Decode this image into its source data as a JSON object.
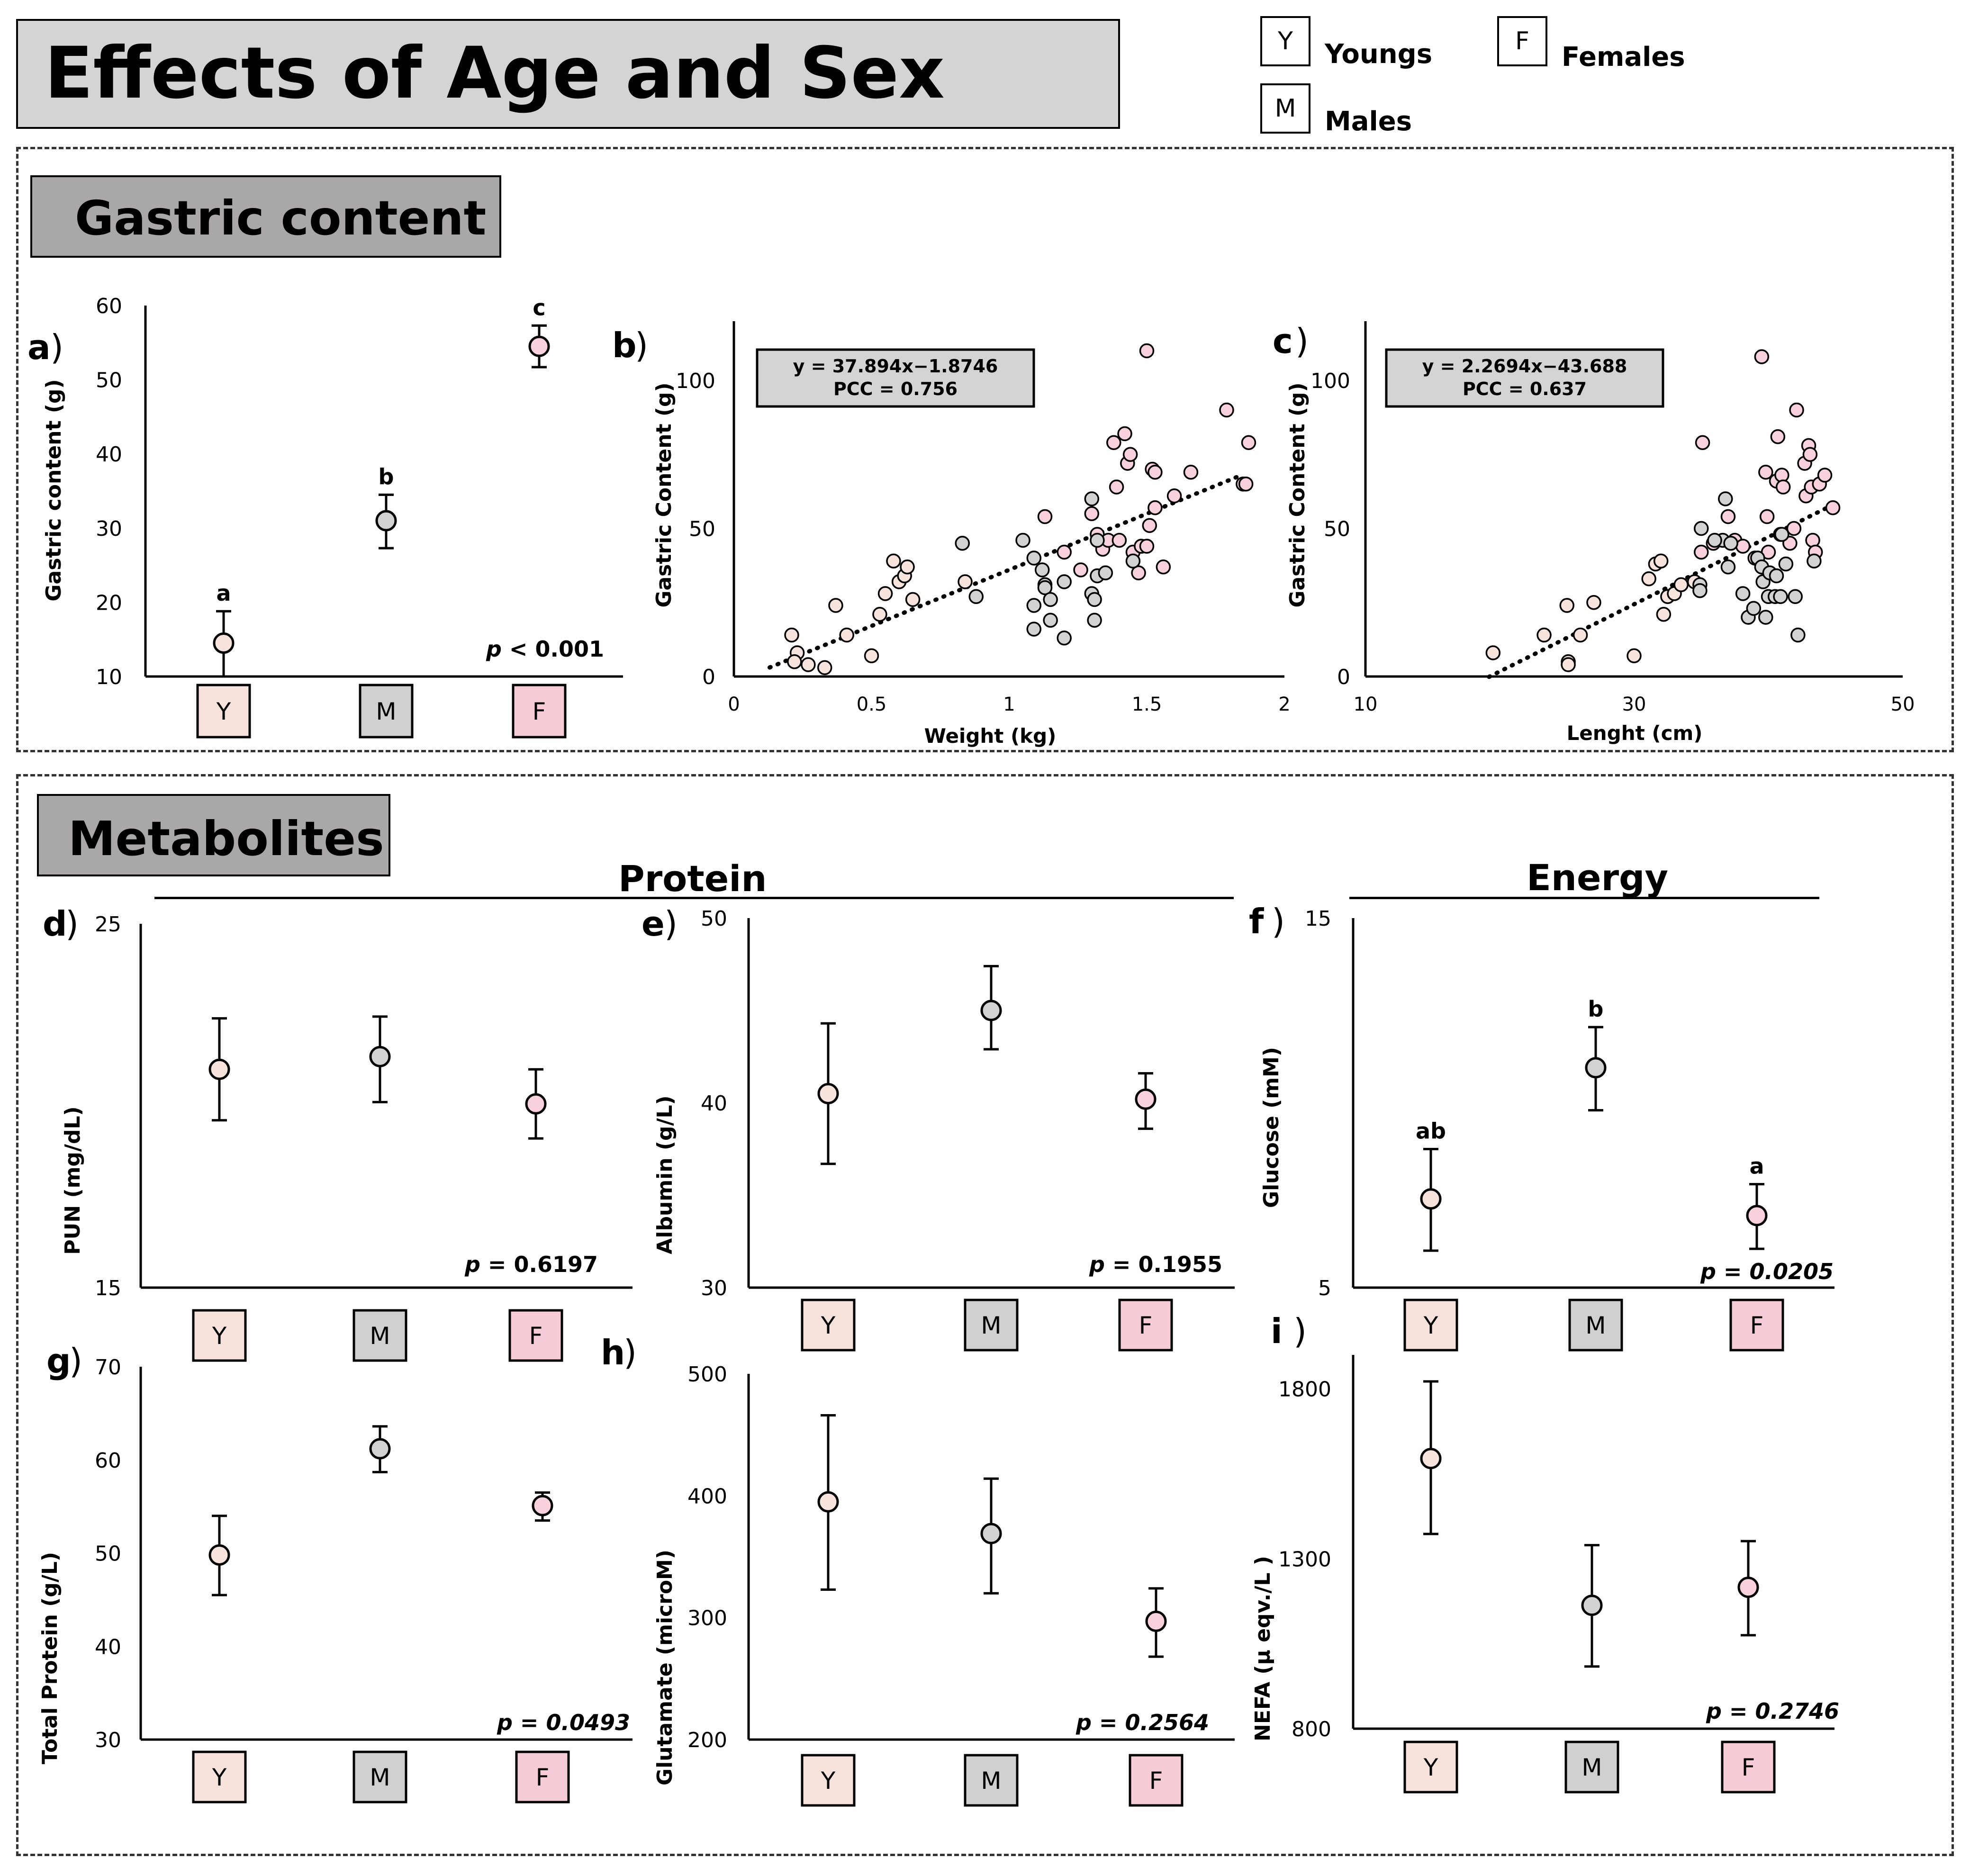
{
  "header": {
    "title": "Effects of Age and Sex",
    "legend": [
      {
        "code": "Y",
        "label": "Youngs",
        "color": "#f9e3dd"
      },
      {
        "code": "F",
        "label": "Females",
        "color": "#f9d1dc"
      },
      {
        "code": "M",
        "label": "Males",
        "color": "#d2d2d2"
      }
    ]
  },
  "sections": {
    "gastric": {
      "title": "Gastric content"
    },
    "metabolites": {
      "title": "Metabolites",
      "group_protein": "Protein",
      "group_energy": "Energy"
    }
  },
  "colors": {
    "Y": "#f9e3dd",
    "M": "#d2d2d2",
    "F": "#f9d1dc",
    "box_Y": "#f7e2dc",
    "box_M": "#d0d0d0",
    "box_F": "#f6ccd7"
  },
  "chart_data": [
    {
      "id": "a",
      "type": "scatter",
      "panel_label": "a",
      "ylabel": "Gastric content (g)",
      "categories": [
        "Y",
        "M",
        "F"
      ],
      "ylim": [
        10,
        60
      ],
      "yticks": [
        10,
        20,
        30,
        40,
        50,
        60
      ],
      "points": [
        {
          "cat": "Y",
          "mean": 14.5,
          "lo": 10.0,
          "hi": 18.8,
          "letter": "a"
        },
        {
          "cat": "M",
          "mean": 31.0,
          "lo": 27.3,
          "hi": 34.5,
          "letter": "b"
        },
        {
          "cat": "F",
          "mean": 54.5,
          "lo": 51.7,
          "hi": 57.3,
          "letter": "c"
        }
      ],
      "p_prefix": "p",
      "p_text": " < 0.001"
    },
    {
      "id": "b",
      "type": "scatter",
      "panel_label": "b",
      "xlabel": "Weight (kg)",
      "ylabel": "Gastric Content  (g)",
      "xlim": [
        0,
        2
      ],
      "ylim": [
        0,
        120
      ],
      "xticks": [
        0,
        0.5,
        1,
        1.5,
        2
      ],
      "xtick_labels": [
        "0",
        "0.5",
        "1",
        "1.5",
        "2"
      ],
      "yticks": [
        0,
        50,
        100
      ],
      "equation": "y = 37.894x−1.8746",
      "pcc": "PCC = 0.756",
      "trendline": {
        "slope": 37.894,
        "intercept": -1.8746,
        "x_start": 0.13,
        "x_end": 1.85
      },
      "points": [
        [
          0.21,
          14,
          "Y"
        ],
        [
          0.23,
          8,
          "Y"
        ],
        [
          0.22,
          5,
          "Y"
        ],
        [
          0.27,
          4,
          "Y"
        ],
        [
          0.33,
          3,
          "Y"
        ],
        [
          0.37,
          24,
          "Y"
        ],
        [
          0.41,
          14,
          "Y"
        ],
        [
          0.5,
          7,
          "Y"
        ],
        [
          0.53,
          21,
          "Y"
        ],
        [
          0.55,
          28,
          "Y"
        ],
        [
          0.58,
          39,
          "Y"
        ],
        [
          0.6,
          32,
          "Y"
        ],
        [
          0.62,
          34,
          "Y"
        ],
        [
          0.63,
          37,
          "Y"
        ],
        [
          0.65,
          26,
          "Y"
        ],
        [
          0.84,
          32,
          "Y"
        ],
        [
          1.13,
          54,
          "F"
        ],
        [
          1.2,
          42,
          "F"
        ],
        [
          1.26,
          36,
          "F"
        ],
        [
          1.3,
          55,
          "F"
        ],
        [
          1.32,
          48,
          "F"
        ],
        [
          1.34,
          43,
          "F"
        ],
        [
          1.36,
          46,
          "F"
        ],
        [
          1.38,
          79,
          "F"
        ],
        [
          1.39,
          64,
          "F"
        ],
        [
          1.4,
          46,
          "F"
        ],
        [
          1.42,
          82,
          "F"
        ],
        [
          1.43,
          72,
          "F"
        ],
        [
          1.44,
          75,
          "F"
        ],
        [
          1.45,
          42,
          "F"
        ],
        [
          1.47,
          35,
          "F"
        ],
        [
          1.48,
          44,
          "F"
        ],
        [
          1.5,
          110,
          "F"
        ],
        [
          1.5,
          44,
          "F"
        ],
        [
          1.51,
          51,
          "F"
        ],
        [
          1.52,
          70,
          "F"
        ],
        [
          1.53,
          69,
          "F"
        ],
        [
          1.53,
          57,
          "F"
        ],
        [
          1.56,
          37,
          "F"
        ],
        [
          1.6,
          61,
          "F"
        ],
        [
          1.66,
          69,
          "F"
        ],
        [
          1.79,
          90,
          "F"
        ],
        [
          1.85,
          65,
          "F"
        ],
        [
          1.87,
          79,
          "F"
        ],
        [
          1.86,
          65,
          "F"
        ],
        [
          0.83,
          45,
          "M"
        ],
        [
          0.88,
          27,
          "M"
        ],
        [
          1.05,
          46,
          "M"
        ],
        [
          1.09,
          40,
          "M"
        ],
        [
          1.09,
          24,
          "M"
        ],
        [
          1.09,
          16,
          "M"
        ],
        [
          1.12,
          36,
          "M"
        ],
        [
          1.13,
          31,
          "M"
        ],
        [
          1.13,
          30,
          "M"
        ],
        [
          1.15,
          26,
          "M"
        ],
        [
          1.15,
          19,
          "M"
        ],
        [
          1.2,
          32,
          "M"
        ],
        [
          1.2,
          13,
          "M"
        ],
        [
          1.3,
          60,
          "M"
        ],
        [
          1.3,
          28,
          "M"
        ],
        [
          1.31,
          26,
          "M"
        ],
        [
          1.31,
          19,
          "M"
        ],
        [
          1.32,
          46,
          "M"
        ],
        [
          1.32,
          34,
          "M"
        ],
        [
          1.35,
          35,
          "M"
        ],
        [
          1.45,
          39,
          "M"
        ]
      ]
    },
    {
      "id": "c",
      "type": "scatter",
      "panel_label": "c",
      "xlabel": "Lenght (cm)",
      "ylabel": "Gastric Content  (g)",
      "xlim": [
        10,
        50
      ],
      "ylim": [
        0,
        120
      ],
      "xticks": [
        10,
        30,
        50
      ],
      "xtick_labels": [
        "10",
        "30",
        "50"
      ],
      "yticks": [
        0,
        50,
        100
      ],
      "equation": "y = 2.2694x−43.688",
      "pcc": "PCC = 0.637",
      "trendline": {
        "slope": 2.2694,
        "intercept": -43.688,
        "x_start": 19.2,
        "x_end": 44.8
      },
      "points": [
        [
          19.5,
          8,
          "Y"
        ],
        [
          23.3,
          14,
          "Y"
        ],
        [
          25.0,
          24,
          "Y"
        ],
        [
          25.1,
          5,
          "Y"
        ],
        [
          25.1,
          4,
          "Y"
        ],
        [
          26.0,
          14,
          "Y"
        ],
        [
          27.0,
          25,
          "Y"
        ],
        [
          30.0,
          7,
          "Y"
        ],
        [
          31.1,
          33,
          "Y"
        ],
        [
          31.6,
          38,
          "Y"
        ],
        [
          32.0,
          39,
          "Y"
        ],
        [
          32.2,
          21,
          "Y"
        ],
        [
          32.5,
          27,
          "Y"
        ],
        [
          33.0,
          28,
          "Y"
        ],
        [
          33.5,
          31,
          "Y"
        ],
        [
          34.5,
          32,
          "Y"
        ],
        [
          35.0,
          42,
          "F"
        ],
        [
          35.1,
          79,
          "F"
        ],
        [
          35.9,
          45,
          "F"
        ],
        [
          37.0,
          54,
          "F"
        ],
        [
          37.5,
          46,
          "F"
        ],
        [
          38.1,
          44,
          "F"
        ],
        [
          39.0,
          40,
          "F"
        ],
        [
          39.5,
          108,
          "F"
        ],
        [
          39.8,
          69,
          "F"
        ],
        [
          39.9,
          54,
          "F"
        ],
        [
          40.0,
          42,
          "F"
        ],
        [
          40.6,
          66,
          "F"
        ],
        [
          40.7,
          81,
          "F"
        ],
        [
          40.9,
          48,
          "F"
        ],
        [
          41.0,
          68,
          "F"
        ],
        [
          41.1,
          64,
          "F"
        ],
        [
          41.6,
          45,
          "F"
        ],
        [
          41.9,
          50,
          "F"
        ],
        [
          42.1,
          90,
          "F"
        ],
        [
          42.7,
          72,
          "F"
        ],
        [
          42.8,
          61,
          "F"
        ],
        [
          43.0,
          78,
          "F"
        ],
        [
          43.1,
          75,
          "F"
        ],
        [
          43.2,
          64,
          "F"
        ],
        [
          43.3,
          46,
          "F"
        ],
        [
          43.5,
          42,
          "F"
        ],
        [
          43.8,
          65,
          "F"
        ],
        [
          44.2,
          68,
          "F"
        ],
        [
          44.8,
          57,
          "F"
        ],
        [
          36.8,
          60,
          "M"
        ],
        [
          36.6,
          46,
          "M"
        ],
        [
          36.0,
          46,
          "M"
        ],
        [
          37.2,
          45,
          "M"
        ],
        [
          37.0,
          37,
          "M"
        ],
        [
          38.1,
          28,
          "M"
        ],
        [
          38.5,
          20,
          "M"
        ],
        [
          38.9,
          23,
          "M"
        ],
        [
          39.2,
          40,
          "M"
        ],
        [
          39.5,
          37,
          "M"
        ],
        [
          39.6,
          32,
          "M"
        ],
        [
          39.8,
          20,
          "M"
        ],
        [
          40.0,
          27,
          "M"
        ],
        [
          40.1,
          35,
          "M"
        ],
        [
          40.5,
          27,
          "M"
        ],
        [
          40.6,
          34,
          "M"
        ],
        [
          40.9,
          27,
          "M"
        ],
        [
          41.0,
          48,
          "M"
        ],
        [
          41.3,
          38,
          "M"
        ],
        [
          42.0,
          27,
          "M"
        ],
        [
          42.2,
          14,
          "M"
        ],
        [
          43.4,
          39,
          "M"
        ],
        [
          34.9,
          31,
          "M"
        ],
        [
          34.9,
          29,
          "M"
        ],
        [
          35.0,
          50,
          "M"
        ]
      ]
    },
    {
      "id": "d",
      "type": "scatter",
      "panel_label": "d",
      "ylabel": "PUN (mg/dL)",
      "categories": [
        "Y",
        "M",
        "F"
      ],
      "ylim": [
        15,
        25
      ],
      "yticks": [
        15,
        25
      ],
      "points": [
        {
          "cat": "Y",
          "mean": 21.0,
          "lo": 19.6,
          "hi": 22.4
        },
        {
          "cat": "M",
          "mean": 21.35,
          "lo": 20.1,
          "hi": 22.45
        },
        {
          "cat": "F",
          "mean": 20.05,
          "lo": 19.1,
          "hi": 21.0
        }
      ],
      "p_prefix": "p",
      "p_text": " = 0.6197"
    },
    {
      "id": "e",
      "type": "scatter",
      "panel_label": "e",
      "ylabel": "Albumin (g/L)",
      "categories": [
        "Y",
        "M",
        "F"
      ],
      "ylim": [
        30,
        50
      ],
      "yticks": [
        30,
        40,
        50
      ],
      "points": [
        {
          "cat": "Y",
          "mean": 40.5,
          "lo": 36.7,
          "hi": 44.3
        },
        {
          "cat": "M",
          "mean": 45.0,
          "lo": 42.9,
          "hi": 47.4
        },
        {
          "cat": "F",
          "mean": 40.2,
          "lo": 38.6,
          "hi": 41.6
        }
      ],
      "p_prefix": "p",
      "p_text": " = 0.1955"
    },
    {
      "id": "f",
      "type": "scatter",
      "panel_label": "f",
      "ylabel": "Glucose (mM)",
      "categories": [
        "Y",
        "M",
        "F"
      ],
      "ylim": [
        5,
        15
      ],
      "yticks": [
        5,
        15
      ],
      "points": [
        {
          "cat": "Y",
          "mean": 7.4,
          "lo": 6.0,
          "hi": 8.75,
          "letter": "ab"
        },
        {
          "cat": "M",
          "mean": 10.95,
          "lo": 9.8,
          "hi": 12.05,
          "letter": "b"
        },
        {
          "cat": "F",
          "mean": 6.95,
          "lo": 6.05,
          "hi": 7.8,
          "letter": "a"
        }
      ],
      "p_prefix": "p",
      "p_text": " = 0.0205"
    },
    {
      "id": "g",
      "type": "scatter",
      "panel_label": "g",
      "ylabel": "Total Protein (g/L)",
      "categories": [
        "Y",
        "M",
        "F"
      ],
      "ylim": [
        30,
        70
      ],
      "yticks": [
        30,
        40,
        50,
        60,
        70
      ],
      "points": [
        {
          "cat": "Y",
          "mean": 49.8,
          "lo": 45.5,
          "hi": 54.0
        },
        {
          "cat": "M",
          "mean": 61.2,
          "lo": 58.7,
          "hi": 63.6
        },
        {
          "cat": "F",
          "mean": 55.1,
          "lo": 53.5,
          "hi": 56.5
        }
      ],
      "p_prefix": "p",
      "p_text": " = 0.0493"
    },
    {
      "id": "h",
      "type": "scatter",
      "panel_label": "h",
      "ylabel": "Glutamate (microM)",
      "categories": [
        "Y",
        "M",
        "F"
      ],
      "ylim": [
        200,
        500
      ],
      "yticks": [
        200,
        300,
        400,
        500
      ],
      "points": [
        {
          "cat": "Y",
          "mean": 395,
          "lo": 323,
          "hi": 466
        },
        {
          "cat": "M",
          "mean": 369,
          "lo": 320,
          "hi": 414
        },
        {
          "cat": "F",
          "mean": 297,
          "lo": 268,
          "hi": 324
        }
      ],
      "p_prefix": "p",
      "p_text": " = 0.2564"
    },
    {
      "id": "i",
      "type": "scatter",
      "panel_label": "i",
      "ylabel": "NEFA (μ eqv./L )",
      "categories": [
        "Y",
        "M",
        "F"
      ],
      "ylim": [
        800,
        1900
      ],
      "yticks": [
        800,
        1300,
        1800
      ],
      "points": [
        {
          "cat": "Y",
          "mean": 1595,
          "lo": 1373,
          "hi": 1822
        },
        {
          "cat": "M",
          "mean": 1163,
          "lo": 983,
          "hi": 1340
        },
        {
          "cat": "F",
          "mean": 1216,
          "lo": 1075,
          "hi": 1352
        }
      ],
      "p_prefix": "p",
      "p_text": " = 0.2746"
    }
  ]
}
